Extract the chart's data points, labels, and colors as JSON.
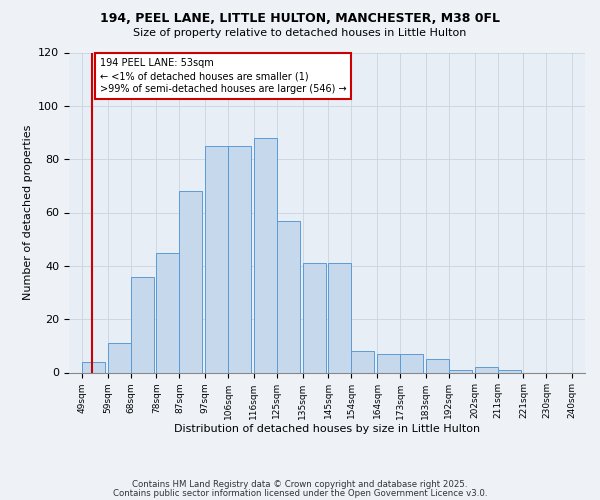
{
  "title": "194, PEEL LANE, LITTLE HULTON, MANCHESTER, M38 0FL",
  "subtitle": "Size of property relative to detached houses in Little Hulton",
  "xlabel": "Distribution of detached houses by size in Little Hulton",
  "ylabel": "Number of detached properties",
  "bar_values": [
    4,
    11,
    36,
    45,
    68,
    85,
    85,
    88,
    57,
    41,
    41,
    8,
    7,
    7,
    5,
    1,
    2,
    1
  ],
  "bin_starts": [
    49,
    59,
    68,
    78,
    87,
    97,
    106,
    116,
    125,
    135,
    145,
    154,
    164,
    173,
    183,
    192,
    202,
    211
  ],
  "bin_width": 9,
  "tick_positions": [
    49,
    59,
    68,
    78,
    87,
    97,
    106,
    116,
    125,
    135,
    145,
    154,
    164,
    173,
    183,
    192,
    202,
    211,
    221,
    230,
    240
  ],
  "bar_color": "#c6d9ec",
  "bar_edge_color": "#5b9bd5",
  "ylim": [
    0,
    120
  ],
  "yticks": [
    0,
    20,
    40,
    60,
    80,
    100,
    120
  ],
  "xlim": [
    44,
    245
  ],
  "vline_x": 53,
  "vline_color": "#cc0000",
  "annotation_title": "194 PEEL LANE: 53sqm",
  "annotation_line1": "← <1% of detached houses are smaller (1)",
  "annotation_line2": ">99% of semi-detached houses are larger (546) →",
  "annotation_box_color": "#cc0000",
  "footnote1": "Contains HM Land Registry data © Crown copyright and database right 2025.",
  "footnote2": "Contains public sector information licensed under the Open Government Licence v3.0.",
  "background_color": "#eef2f7",
  "plot_background_color": "#e8eef5",
  "grid_color": "#c8d4e0"
}
